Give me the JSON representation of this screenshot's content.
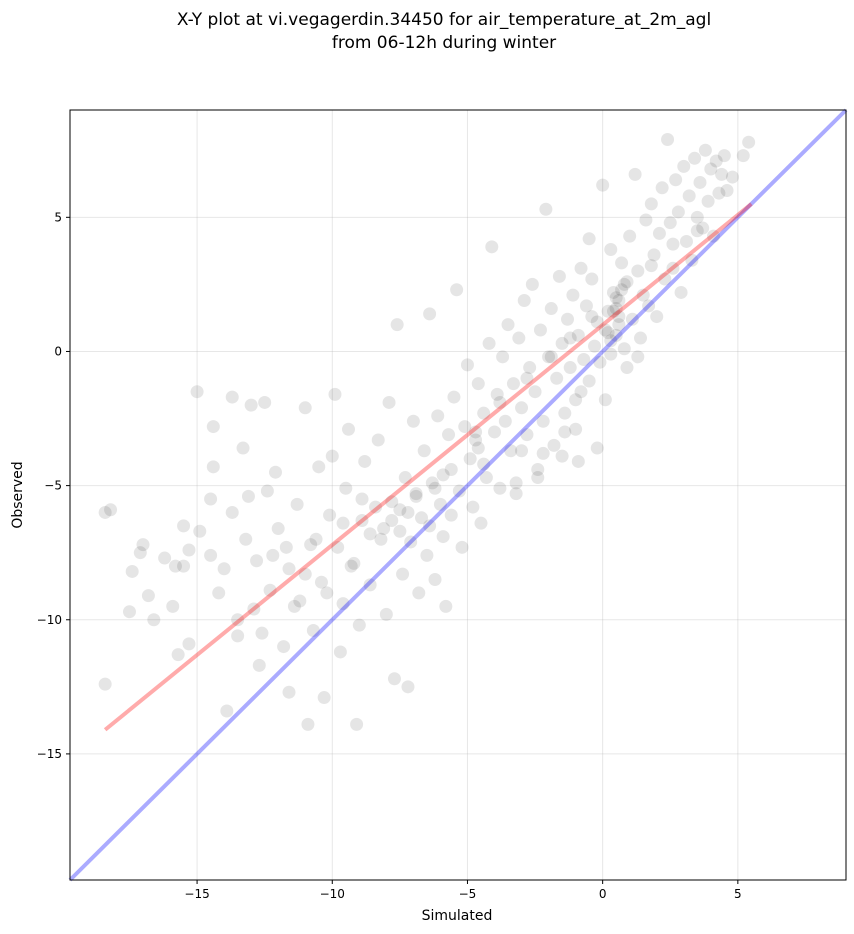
{
  "chart_data": {
    "type": "scatter",
    "title": "X-Y plot at vi.vegagerdin.34450 for air_temperature_at_2m_agl",
    "subtitle": "from 06-12h during winter",
    "xlabel": "Simulated",
    "ylabel": "Observed",
    "xlim": [
      -19.7,
      9.0
    ],
    "ylim": [
      -19.7,
      9.0
    ],
    "xticks": [
      -15,
      -10,
      -5,
      0,
      5
    ],
    "yticks": [
      -15,
      -10,
      -5,
      0,
      5
    ],
    "xtick_labels": [
      "−15",
      "−10",
      "−5",
      "0",
      "5"
    ],
    "ytick_labels": [
      "−15",
      "−10",
      "−5",
      "0",
      "5"
    ],
    "grid": true,
    "point_color": "#000000",
    "point_opacity": 0.1,
    "series": [
      {
        "points": [
          [
            -18.4,
            -6.0
          ],
          [
            -18.2,
            -5.9
          ],
          [
            -18.4,
            -12.4
          ],
          [
            -17.5,
            -9.7
          ],
          [
            -17.1,
            -7.5
          ],
          [
            -17.0,
            -7.2
          ],
          [
            -16.6,
            -10.0
          ],
          [
            -16.2,
            -7.7
          ],
          [
            -15.8,
            -8.0
          ],
          [
            -15.7,
            -11.3
          ],
          [
            -15.5,
            -8.0
          ],
          [
            -15.5,
            -6.5
          ],
          [
            -15.3,
            -7.4
          ],
          [
            -15.3,
            -10.9
          ],
          [
            -15.0,
            -1.5
          ],
          [
            -14.9,
            -6.7
          ],
          [
            -14.5,
            -7.6
          ],
          [
            -14.5,
            -5.5
          ],
          [
            -14.4,
            -2.8
          ],
          [
            -14.4,
            -4.3
          ],
          [
            -14.0,
            -8.1
          ],
          [
            -13.9,
            -13.4
          ],
          [
            -13.7,
            -6.0
          ],
          [
            -13.7,
            -1.7
          ],
          [
            -13.5,
            -10.6
          ],
          [
            -13.3,
            -3.6
          ],
          [
            -13.2,
            -7.0
          ],
          [
            -13.1,
            -5.4
          ],
          [
            -13.0,
            -2.0
          ],
          [
            -12.9,
            -9.6
          ],
          [
            -12.8,
            -7.8
          ],
          [
            -12.7,
            -11.7
          ],
          [
            -12.5,
            -1.9
          ],
          [
            -12.4,
            -5.2
          ],
          [
            -12.3,
            -8.9
          ],
          [
            -12.1,
            -4.5
          ],
          [
            -12.0,
            -6.6
          ],
          [
            -11.8,
            -11.0
          ],
          [
            -11.7,
            -7.3
          ],
          [
            -11.6,
            -12.7
          ],
          [
            -11.4,
            -9.5
          ],
          [
            -11.3,
            -5.7
          ],
          [
            -11.0,
            -8.3
          ],
          [
            -11.0,
            -2.1
          ],
          [
            -10.9,
            -13.9
          ],
          [
            -10.7,
            -10.4
          ],
          [
            -10.6,
            -7.0
          ],
          [
            -10.5,
            -4.3
          ],
          [
            -10.3,
            -12.9
          ],
          [
            -10.2,
            -9.0
          ],
          [
            -10.1,
            -6.1
          ],
          [
            -10.0,
            -3.9
          ],
          [
            -9.9,
            -1.6
          ],
          [
            -9.8,
            -7.3
          ],
          [
            -9.7,
            -11.2
          ],
          [
            -9.6,
            -9.4
          ],
          [
            -9.5,
            -5.1
          ],
          [
            -9.4,
            -2.9
          ],
          [
            -9.2,
            -7.9
          ],
          [
            -9.1,
            -13.9
          ],
          [
            -9.0,
            -10.2
          ],
          [
            -8.9,
            -6.3
          ],
          [
            -8.8,
            -4.1
          ],
          [
            -8.6,
            -8.7
          ],
          [
            -8.4,
            -5.8
          ],
          [
            -8.3,
            -3.3
          ],
          [
            -8.2,
            -7.0
          ],
          [
            -8.0,
            -9.8
          ],
          [
            -7.9,
            -1.9
          ],
          [
            -7.8,
            -5.6
          ],
          [
            -7.7,
            -12.2
          ],
          [
            -7.6,
            1.0
          ],
          [
            -7.5,
            -6.7
          ],
          [
            -7.4,
            -8.3
          ],
          [
            -7.3,
            -4.7
          ],
          [
            -7.2,
            -12.5
          ],
          [
            -7.1,
            -7.1
          ],
          [
            -7.0,
            -2.6
          ],
          [
            -6.9,
            -5.3
          ],
          [
            -6.8,
            -9.0
          ],
          [
            -6.7,
            -6.2
          ],
          [
            -6.6,
            -3.7
          ],
          [
            -6.5,
            -7.6
          ],
          [
            -6.4,
            1.4
          ],
          [
            -6.3,
            -4.9
          ],
          [
            -6.2,
            -8.5
          ],
          [
            -6.1,
            -2.4
          ],
          [
            -6.0,
            -5.7
          ],
          [
            -5.9,
            -6.9
          ],
          [
            -5.8,
            -9.5
          ],
          [
            -5.7,
            -3.1
          ],
          [
            -5.6,
            -4.4
          ],
          [
            -5.5,
            -1.7
          ],
          [
            -5.4,
            2.3
          ],
          [
            -5.3,
            -5.2
          ],
          [
            -5.2,
            -7.3
          ],
          [
            -5.1,
            -2.8
          ],
          [
            -5.0,
            -0.5
          ],
          [
            -4.9,
            -4.0
          ],
          [
            -4.8,
            -5.8
          ],
          [
            -4.7,
            -3.3
          ],
          [
            -4.6,
            -1.2
          ],
          [
            -4.5,
            -6.4
          ],
          [
            -4.4,
            -2.3
          ],
          [
            -4.3,
            -4.7
          ],
          [
            -4.2,
            0.3
          ],
          [
            -4.1,
            3.9
          ],
          [
            -4.0,
            -3.0
          ],
          [
            -3.9,
            -1.6
          ],
          [
            -3.8,
            -5.1
          ],
          [
            -3.7,
            -0.2
          ],
          [
            -3.6,
            -2.6
          ],
          [
            -3.5,
            1.0
          ],
          [
            -3.4,
            -3.7
          ],
          [
            -3.3,
            -1.2
          ],
          [
            -3.2,
            -5.3
          ],
          [
            -3.1,
            0.5
          ],
          [
            -3.0,
            -2.1
          ],
          [
            -2.9,
            1.9
          ],
          [
            -2.8,
            -3.1
          ],
          [
            -2.7,
            -0.6
          ],
          [
            -2.6,
            2.5
          ],
          [
            -2.5,
            -1.5
          ],
          [
            -2.4,
            -4.4
          ],
          [
            -2.3,
            0.8
          ],
          [
            -2.2,
            -2.6
          ],
          [
            -2.1,
            5.3
          ],
          [
            -2.0,
            -0.2
          ],
          [
            -1.9,
            1.6
          ],
          [
            -1.8,
            -3.5
          ],
          [
            -1.7,
            -1.0
          ],
          [
            -1.6,
            2.8
          ],
          [
            -1.5,
            0.3
          ],
          [
            -1.4,
            -2.3
          ],
          [
            -1.3,
            1.2
          ],
          [
            -1.2,
            -0.6
          ],
          [
            -1.1,
            2.1
          ],
          [
            -1.0,
            -1.8
          ],
          [
            -0.9,
            0.6
          ],
          [
            -0.8,
            3.1
          ],
          [
            -0.7,
            -0.3
          ],
          [
            -0.6,
            1.7
          ],
          [
            -0.5,
            -1.1
          ],
          [
            -0.4,
            2.7
          ],
          [
            -0.3,
            0.2
          ],
          [
            -0.2,
            1.1
          ],
          [
            -0.1,
            -0.4
          ],
          [
            0.0,
            6.2
          ],
          [
            0.1,
            0.8
          ],
          [
            0.2,
            1.5
          ],
          [
            0.3,
            -0.1
          ],
          [
            0.4,
            2.2
          ],
          [
            0.5,
            0.6
          ],
          [
            0.6,
            1.9
          ],
          [
            0.7,
            3.3
          ],
          [
            0.8,
            0.1
          ],
          [
            0.9,
            2.6
          ],
          [
            1.0,
            4.3
          ],
          [
            1.1,
            1.2
          ],
          [
            1.2,
            6.6
          ],
          [
            1.3,
            3.0
          ],
          [
            1.4,
            0.5
          ],
          [
            1.5,
            2.1
          ],
          [
            1.6,
            4.9
          ],
          [
            1.7,
            1.7
          ],
          [
            1.8,
            5.5
          ],
          [
            1.9,
            3.6
          ],
          [
            2.0,
            1.3
          ],
          [
            2.1,
            4.4
          ],
          [
            2.2,
            6.1
          ],
          [
            2.3,
            2.7
          ],
          [
            2.4,
            7.9
          ],
          [
            2.5,
            4.8
          ],
          [
            2.6,
            3.1
          ],
          [
            2.7,
            6.4
          ],
          [
            2.8,
            5.2
          ],
          [
            2.9,
            2.2
          ],
          [
            3.0,
            6.9
          ],
          [
            3.1,
            4.1
          ],
          [
            3.2,
            5.8
          ],
          [
            3.3,
            3.4
          ],
          [
            3.4,
            7.2
          ],
          [
            3.5,
            5.0
          ],
          [
            3.6,
            6.3
          ],
          [
            3.7,
            4.6
          ],
          [
            3.8,
            7.5
          ],
          [
            3.9,
            5.6
          ],
          [
            4.0,
            6.8
          ],
          [
            4.1,
            4.3
          ],
          [
            4.2,
            7.1
          ],
          [
            4.3,
            5.9
          ],
          [
            4.4,
            6.6
          ],
          [
            4.5,
            7.3
          ],
          [
            4.6,
            6.0
          ],
          [
            4.8,
            6.5
          ],
          [
            5.2,
            7.3
          ],
          [
            5.4,
            7.8
          ],
          [
            -0.5,
            4.2
          ],
          [
            0.3,
            3.8
          ],
          [
            0.6,
            1.0
          ],
          [
            0.4,
            1.5
          ],
          [
            0.5,
            2.0
          ],
          [
            0.7,
            2.3
          ],
          [
            0.3,
            0.4
          ],
          [
            0.2,
            0.7
          ],
          [
            0.6,
            1.3
          ],
          [
            0.5,
            1.6
          ],
          [
            0.8,
            2.5
          ],
          [
            -1.5,
            -3.9
          ],
          [
            -2.4,
            -4.7
          ],
          [
            -3.2,
            -4.9
          ],
          [
            -4.6,
            -3.6
          ],
          [
            -4.4,
            -4.2
          ],
          [
            -4.7,
            -3.0
          ],
          [
            -5.6,
            -6.1
          ],
          [
            -6.4,
            -6.5
          ],
          [
            -7.2,
            -6.0
          ],
          [
            -7.8,
            -6.3
          ],
          [
            -8.1,
            -6.6
          ],
          [
            -6.9,
            -5.4
          ],
          [
            -7.5,
            -5.9
          ],
          [
            -6.2,
            -5.1
          ],
          [
            -5.9,
            -4.6
          ],
          [
            -8.6,
            -6.8
          ],
          [
            -9.3,
            -8.0
          ],
          [
            -10.4,
            -8.6
          ],
          [
            -11.2,
            -9.3
          ],
          [
            -12.6,
            -10.5
          ],
          [
            -13.5,
            -10.0
          ],
          [
            -14.2,
            -9.0
          ],
          [
            -15.9,
            -9.5
          ],
          [
            -16.8,
            -9.1
          ],
          [
            -17.4,
            -8.2
          ],
          [
            -12.2,
            -7.6
          ],
          [
            -11.6,
            -8.1
          ],
          [
            -10.8,
            -7.2
          ],
          [
            -9.6,
            -6.4
          ],
          [
            -8.9,
            -5.5
          ],
          [
            -3.8,
            -1.9
          ],
          [
            -2.8,
            -1.0
          ],
          [
            -1.9,
            -0.2
          ],
          [
            -1.2,
            0.5
          ],
          [
            -0.4,
            1.3
          ],
          [
            1.8,
            3.2
          ],
          [
            2.6,
            4.0
          ],
          [
            3.5,
            4.5
          ],
          [
            -0.8,
            -1.5
          ],
          [
            -1.4,
            -3.0
          ],
          [
            -2.2,
            -3.8
          ],
          [
            -3.0,
            -3.7
          ],
          [
            -1.0,
            -2.9
          ],
          [
            0.9,
            -0.6
          ],
          [
            1.3,
            -0.2
          ],
          [
            0.1,
            -1.8
          ],
          [
            -0.2,
            -3.6
          ],
          [
            -0.9,
            -4.1
          ]
        ]
      },
      {
        "points": [
          [
            -18.4,
            -14.1
          ],
          [
            5.5,
            5.5
          ]
        ]
      },
      {
        "points": [
          [
            -19.7,
            -19.7
          ],
          [
            9.0,
            9.0
          ]
        ]
      }
    ]
  }
}
